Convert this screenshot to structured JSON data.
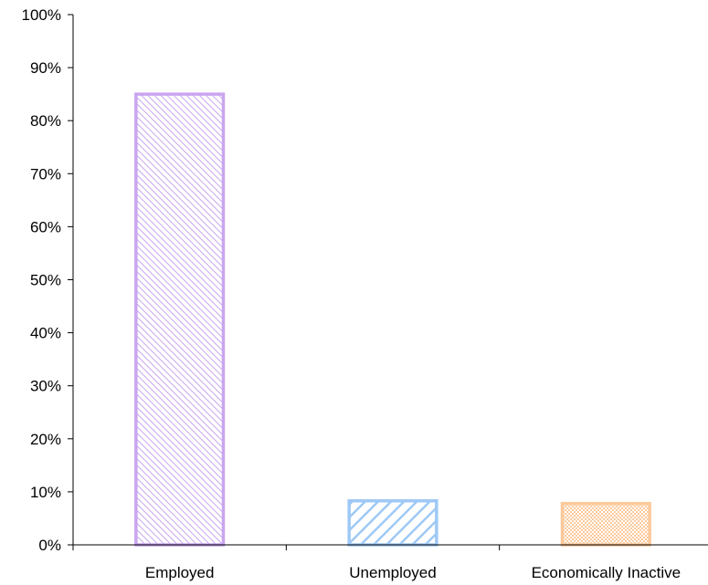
{
  "chart_data": {
    "type": "bar",
    "title": "",
    "xlabel": "",
    "ylabel": "",
    "categories": [
      "Employed",
      "Unemployed",
      "Economically Inactive"
    ],
    "values": [
      0.85,
      0.083,
      0.078
    ],
    "ylim": [
      0,
      1
    ],
    "yticks": [
      0,
      0.1,
      0.2,
      0.3,
      0.4,
      0.5,
      0.6,
      0.7,
      0.8,
      0.9,
      1.0
    ],
    "ytick_labels": [
      "0%",
      "10%",
      "20%",
      "30%",
      "40%",
      "50%",
      "60%",
      "70%",
      "80%",
      "90%",
      "100%"
    ],
    "grid": false,
    "legend": "none",
    "bar_colors": [
      "#c9a5f0",
      "#9fc9f5",
      "#fcc99b"
    ],
    "bar_patterns": [
      "fine-diagonal-hatch",
      "wide-diagonal-hatch",
      "dots"
    ]
  }
}
